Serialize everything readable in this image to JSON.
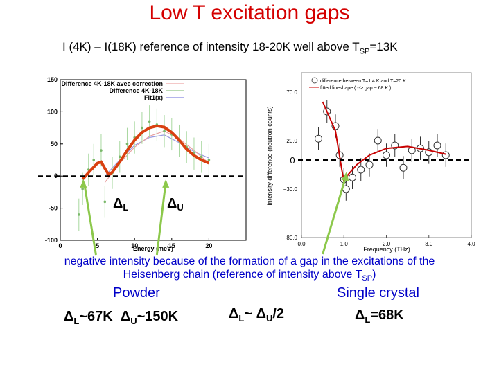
{
  "slide": {
    "title": "Low T excitation gaps",
    "subtitle_pre": "I (4K) – I(18K) reference of intensity 18-20K well above T",
    "subtitle_sub": "SP",
    "subtitle_post": "=13K",
    "caption_line1": "negative intensity because of the formation of a gap in the excitations of the",
    "caption_line2_pre": "Heisenberg chain (reference of intensity above T",
    "caption_line2_sub": "SP",
    "caption_line2_post": ")",
    "powder_label": "Powder",
    "single_crystal_label": "Single crystal",
    "delta": "Δ",
    "sub_L": "L",
    "sub_U": "U",
    "powder_L_value": "~67K",
    "powder_U_value": "~150K",
    "ratio_mid": "~ Δ",
    "ratio_tail": "/2",
    "crystal_value": "=68K",
    "colors": {
      "title": "#d40000",
      "caption": "#0000c8",
      "arrow": "#8cc84b",
      "fit": "#d94010"
    }
  },
  "chart_data": [
    {
      "type": "line",
      "title": "",
      "xlabel": "Energy (meV)",
      "ylabel": "",
      "xlim": [
        0,
        25
      ],
      "ylim": [
        -100,
        150
      ],
      "x_ticks": [
        "0",
        "5",
        "10",
        "15",
        "20"
      ],
      "y_ticks": [
        "150",
        "100",
        "50",
        "0",
        "-50",
        "-100"
      ],
      "zero_line_label": "0",
      "legend": [
        "Difference 4K-18K avec correction",
        "Difference 4K-18K",
        "Fit1(x)"
      ],
      "annotations": [
        "Δ",
        "L",
        "Δ",
        "U"
      ],
      "series": [
        {
          "name": "Fit1(x)",
          "x": [
            3,
            4,
            5,
            5.5,
            6,
            6.5,
            7,
            8,
            9,
            10,
            11,
            12,
            13,
            14,
            15,
            16,
            17,
            18,
            19,
            20
          ],
          "values": [
            -5,
            8,
            20,
            22,
            12,
            2,
            6,
            22,
            40,
            56,
            68,
            75,
            78,
            76,
            68,
            56,
            42,
            32,
            25,
            20
          ]
        },
        {
          "name": "Difference 4K-18K",
          "x": [
            6,
            8,
            10,
            12,
            14,
            16,
            18,
            20
          ],
          "values": [
            0,
            25,
            48,
            60,
            64,
            52,
            38,
            28
          ]
        },
        {
          "name": "Difference 4K-18K avec correction",
          "x": [
            6,
            8,
            10,
            12,
            14,
            16,
            18,
            20
          ],
          "values": [
            -10,
            20,
            45,
            62,
            70,
            58,
            40,
            20
          ]
        }
      ],
      "points": {
        "x": [
          2.5,
          3,
          3.8,
          4.5,
          5.5,
          6,
          7,
          8,
          9,
          10,
          11,
          12,
          13,
          14,
          15,
          16,
          17,
          18,
          19,
          20
        ],
        "values": [
          -60,
          -20,
          10,
          25,
          40,
          -40,
          5,
          30,
          50,
          60,
          75,
          85,
          80,
          70,
          65,
          55,
          45,
          35,
          30,
          25
        ]
      }
    },
    {
      "type": "scatter",
      "title": "",
      "xlabel": "Frequency (THz)",
      "ylabel": "Intensity difference (neutron counts)",
      "xlim": [
        0,
        4
      ],
      "ylim": [
        -80,
        90
      ],
      "x_ticks": [
        "0.0",
        "1.0",
        "2.0",
        "3.0",
        "4.0"
      ],
      "y_ticks": [
        "70.0",
        "20.0",
        "−30.0",
        "−80.0"
      ],
      "zero_line_label": "0",
      "legend": [
        "difference between T=1.4 K and T=20 K",
        "fitted lineshape ( --> gap ~ 68 K )"
      ],
      "series": [
        {
          "name": "fitted lineshape",
          "x": [
            0.5,
            0.8,
            0.95,
            1.0,
            1.1,
            1.3,
            1.6,
            2.0,
            2.5,
            3.0,
            3.4
          ],
          "values": [
            60,
            30,
            -10,
            -22,
            -15,
            -5,
            5,
            12,
            14,
            10,
            6
          ]
        },
        {
          "name": "difference between T=1.4 K and T=20 K",
          "x": [
            0.4,
            0.6,
            0.8,
            0.9,
            1.0,
            1.05,
            1.2,
            1.4,
            1.6,
            1.8,
            2.0,
            2.2,
            2.4,
            2.6,
            2.8,
            3.0,
            3.2,
            3.4
          ],
          "values": [
            22,
            50,
            35,
            5,
            -20,
            -30,
            -18,
            -10,
            -5,
            20,
            5,
            15,
            -8,
            10,
            12,
            8,
            15,
            5
          ]
        }
      ]
    }
  ]
}
